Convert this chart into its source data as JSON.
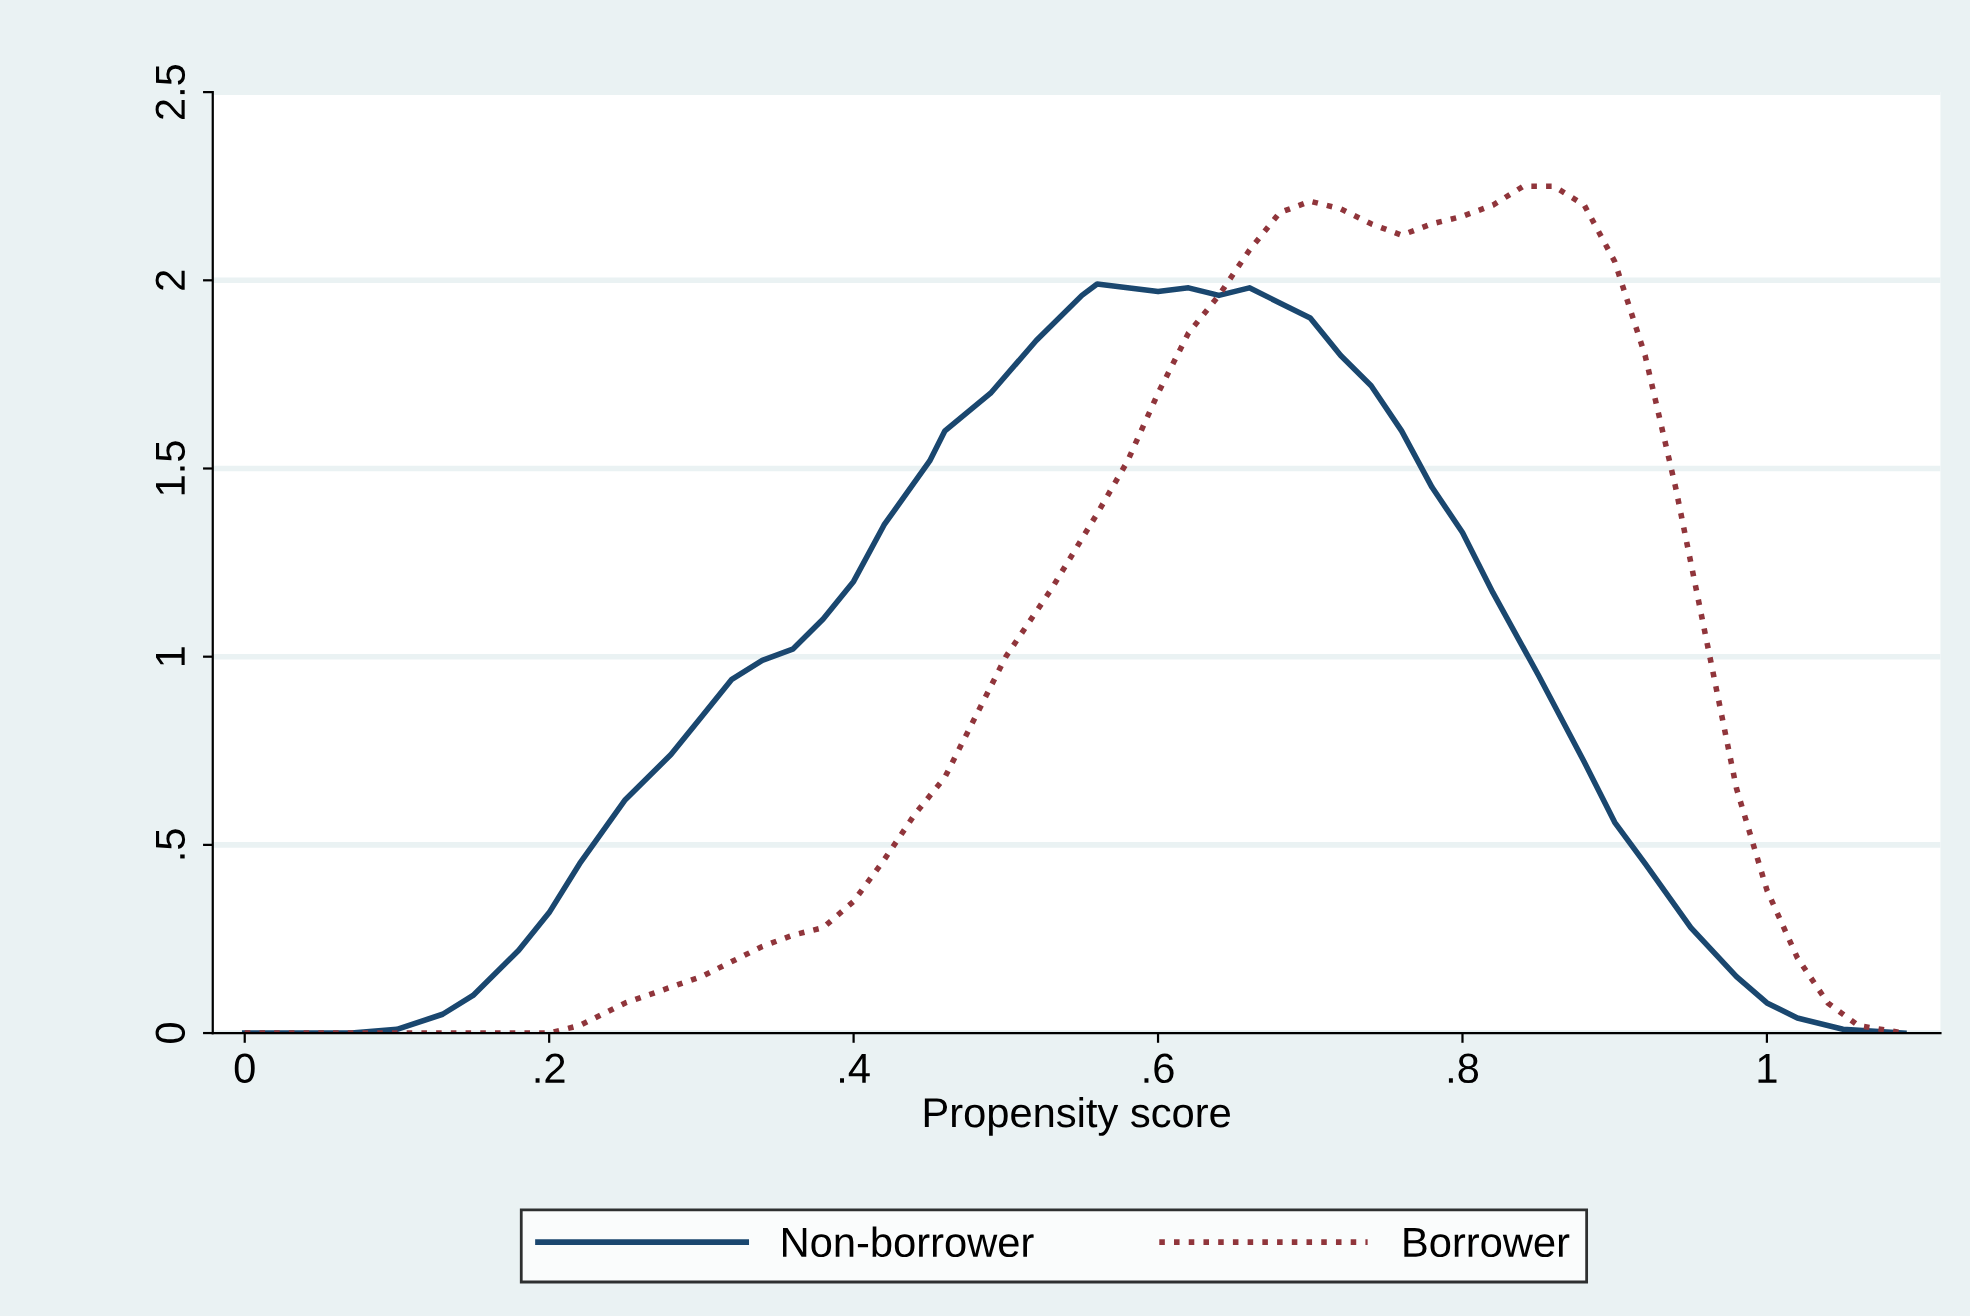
{
  "chart_data": {
    "type": "line",
    "xlabel": "Propensity score",
    "xlim": [
      -0.021,
      1.114
    ],
    "xticks": [
      0,
      {
        "value": 0.2,
        "label": ".2"
      },
      {
        "value": 0.4,
        "label": ".4"
      },
      {
        "value": 0.6,
        "label": ".6"
      },
      {
        "value": 0.8,
        "label": ".8"
      },
      1
    ],
    "ylim": [
      0,
      2.5
    ],
    "yticks": [
      0,
      {
        "value": 0.5,
        "label": ".5"
      },
      1,
      1.5,
      2,
      2.5
    ],
    "grid": "y",
    "legend": "bottom",
    "series": [
      {
        "name": "Non-borrower",
        "color": "#1a476f",
        "line_style": "solid",
        "x": [
          0,
          0.07,
          0.1,
          0.13,
          0.15,
          0.18,
          0.2,
          0.22,
          0.25,
          0.28,
          0.3,
          0.32,
          0.34,
          0.36,
          0.38,
          0.4,
          0.42,
          0.45,
          0.46,
          0.49,
          0.52,
          0.55,
          0.56,
          0.58,
          0.6,
          0.62,
          0.64,
          0.66,
          0.68,
          0.7,
          0.72,
          0.74,
          0.76,
          0.78,
          0.8,
          0.82,
          0.85,
          0.88,
          0.9,
          0.92,
          0.95,
          0.98,
          1.0,
          1.02,
          1.05,
          1.09
        ],
        "values": [
          0,
          0,
          0.01,
          0.05,
          0.1,
          0.22,
          0.32,
          0.45,
          0.62,
          0.74,
          0.84,
          0.94,
          0.99,
          1.02,
          1.1,
          1.2,
          1.35,
          1.52,
          1.6,
          1.7,
          1.84,
          1.96,
          1.99,
          1.98,
          1.97,
          1.98,
          1.96,
          1.98,
          1.94,
          1.9,
          1.8,
          1.72,
          1.6,
          1.45,
          1.33,
          1.17,
          0.95,
          0.72,
          0.56,
          0.45,
          0.28,
          0.15,
          0.08,
          0.04,
          0.01,
          0
        ]
      },
      {
        "name": "Borrower",
        "color": "#90353b",
        "line_style": "dotted",
        "x": [
          0,
          0.2,
          0.22,
          0.25,
          0.3,
          0.34,
          0.36,
          0.38,
          0.4,
          0.42,
          0.44,
          0.46,
          0.48,
          0.5,
          0.53,
          0.56,
          0.58,
          0.6,
          0.62,
          0.64,
          0.66,
          0.68,
          0.7,
          0.72,
          0.74,
          0.76,
          0.78,
          0.8,
          0.82,
          0.84,
          0.86,
          0.88,
          0.9,
          0.92,
          0.94,
          0.96,
          0.98,
          1.0,
          1.02,
          1.04,
          1.06,
          1.09
        ],
        "values": [
          0,
          0,
          0.02,
          0.08,
          0.15,
          0.23,
          0.26,
          0.28,
          0.35,
          0.46,
          0.58,
          0.68,
          0.84,
          1.0,
          1.18,
          1.38,
          1.52,
          1.7,
          1.86,
          1.96,
          2.08,
          2.18,
          2.21,
          2.19,
          2.15,
          2.12,
          2.15,
          2.17,
          2.2,
          2.25,
          2.25,
          2.2,
          2.05,
          1.8,
          1.45,
          1.05,
          0.65,
          0.38,
          0.2,
          0.08,
          0.02,
          0
        ]
      }
    ]
  }
}
